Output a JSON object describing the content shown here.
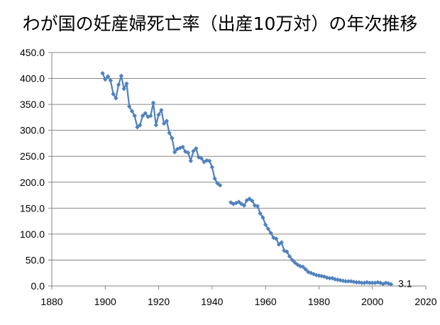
{
  "chart_data": {
    "type": "line",
    "title": "わが国の妊産婦死亡率（出産10万対）の年次推移",
    "xlabel": "",
    "ylabel": "",
    "xlim": [
      1880,
      2020
    ],
    "ylim": [
      0,
      450
    ],
    "x_ticks": [
      "1880",
      "1900",
      "1920",
      "1940",
      "1960",
      "1980",
      "2000",
      "2020"
    ],
    "y_ticks": [
      "0.0",
      "50.0",
      "100.0",
      "150.0",
      "200.0",
      "250.0",
      "300.0",
      "350.0",
      "400.0",
      "450.0"
    ],
    "grid": "horizontal",
    "legend": "none",
    "end_label": "3.1",
    "line_color": "#4f81bd",
    "series": [
      {
        "segments": [
          [
            [
              1899,
              410
            ],
            [
              1900,
              398
            ],
            [
              1901,
              404
            ],
            [
              1902,
              396
            ],
            [
              1903,
              370
            ],
            [
              1904,
              362
            ],
            [
              1905,
              388
            ],
            [
              1906,
              405
            ],
            [
              1907,
              380
            ],
            [
              1908,
              390
            ],
            [
              1909,
              346
            ],
            [
              1910,
              337
            ],
            [
              1911,
              328
            ],
            [
              1912,
              306
            ],
            [
              1913,
              310
            ],
            [
              1914,
              328
            ],
            [
              1915,
              333
            ],
            [
              1916,
              326
            ],
            [
              1917,
              328
            ],
            [
              1918,
              353
            ],
            [
              1919,
              310
            ],
            [
              1920,
              330
            ],
            [
              1921,
              339
            ],
            [
              1922,
              313
            ],
            [
              1923,
              318
            ],
            [
              1924,
              295
            ],
            [
              1925,
              285
            ],
            [
              1926,
              258
            ],
            [
              1927,
              264
            ],
            [
              1928,
              266
            ],
            [
              1929,
              268
            ],
            [
              1930,
              259
            ],
            [
              1931,
              257
            ],
            [
              1932,
              241
            ],
            [
              1933,
              260
            ],
            [
              1934,
              265
            ],
            [
              1935,
              248
            ],
            [
              1936,
              246
            ],
            [
              1937,
              239
            ],
            [
              1938,
              242
            ],
            [
              1939,
              241
            ],
            [
              1940,
              229
            ],
            [
              1941,
              207
            ],
            [
              1942,
              198
            ],
            [
              1943,
              194
            ]
          ],
          [
            [
              1947,
              161
            ],
            [
              1948,
              158
            ],
            [
              1949,
              160
            ],
            [
              1950,
              162
            ],
            [
              1951,
              158
            ],
            [
              1952,
              155
            ],
            [
              1953,
              165
            ],
            [
              1954,
              168
            ],
            [
              1955,
              164
            ],
            [
              1956,
              155
            ],
            [
              1957,
              154
            ],
            [
              1958,
              140
            ],
            [
              1959,
              132
            ],
            [
              1960,
              118
            ],
            [
              1961,
              110
            ],
            [
              1962,
              102
            ],
            [
              1963,
              93
            ],
            [
              1964,
              91
            ],
            [
              1965,
              80
            ],
            [
              1966,
              84
            ],
            [
              1967,
              68
            ],
            [
              1968,
              66
            ],
            [
              1969,
              57
            ],
            [
              1970,
              50
            ],
            [
              1971,
              45
            ],
            [
              1972,
              41
            ],
            [
              1973,
              38
            ],
            [
              1974,
              37
            ],
            [
              1975,
              32
            ],
            [
              1976,
              27
            ],
            [
              1977,
              25
            ],
            [
              1978,
              23
            ],
            [
              1979,
              21
            ],
            [
              1980,
              20
            ],
            [
              1981,
              19
            ],
            [
              1982,
              18
            ],
            [
              1983,
              16
            ],
            [
              1984,
              15
            ],
            [
              1985,
              15
            ],
            [
              1986,
              13
            ],
            [
              1987,
              12
            ],
            [
              1988,
              11
            ],
            [
              1989,
              10
            ],
            [
              1990,
              9
            ],
            [
              1991,
              9
            ],
            [
              1992,
              9
            ],
            [
              1993,
              8
            ],
            [
              1994,
              7
            ],
            [
              1995,
              7
            ],
            [
              1996,
              6
            ],
            [
              1997,
              6
            ],
            [
              1998,
              7
            ],
            [
              1999,
              6
            ],
            [
              2000,
              6
            ],
            [
              2001,
              6
            ],
            [
              2002,
              7
            ],
            [
              2003,
              6
            ],
            [
              2004,
              4
            ],
            [
              2005,
              6
            ],
            [
              2006,
              5
            ],
            [
              2007,
              3.1
            ]
          ]
        ]
      }
    ]
  }
}
